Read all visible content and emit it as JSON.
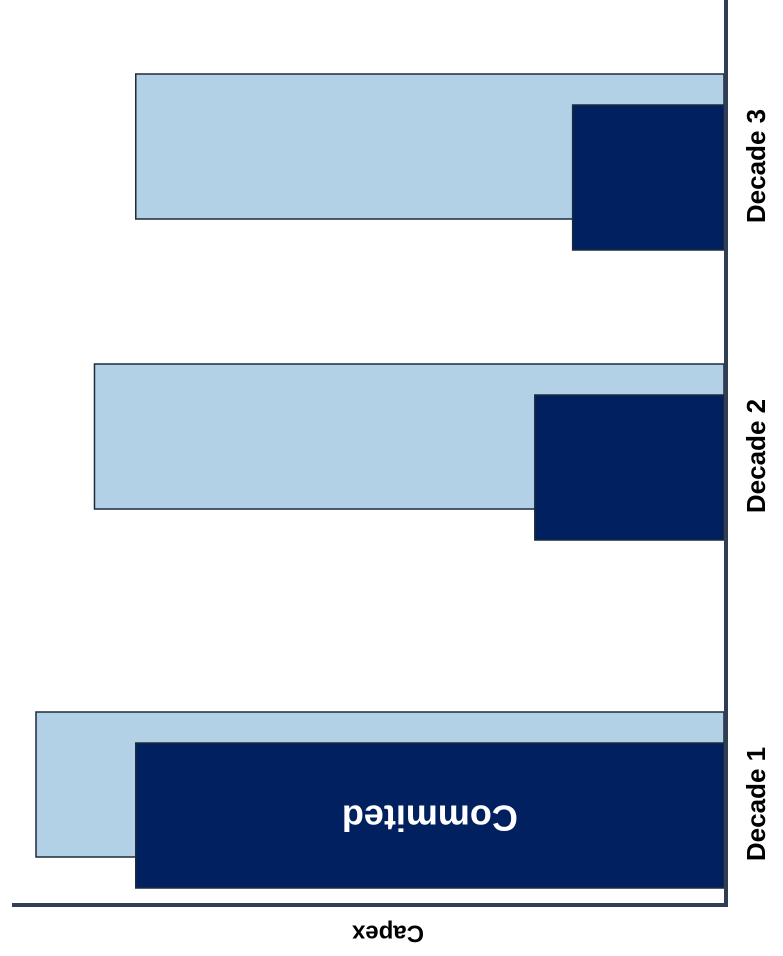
{
  "chart_data": {
    "type": "bar",
    "orientation": "horizontal",
    "categories": [
      "Decade 1",
      "Decade 2",
      "Decade 3"
    ],
    "series": [
      {
        "color": "#b3d1e6",
        "values": [
          100,
          91.5,
          85.5
        ]
      },
      {
        "name": "Commited",
        "color": "#002060",
        "values": [
          85.5,
          27.5,
          22
        ]
      }
    ],
    "xlabel": "Capex",
    "ylabel": "",
    "xlim": [
      0,
      100
    ],
    "grid": false,
    "legend": "none",
    "annotations": [
      {
        "text": "Commited",
        "category": "Decade 1",
        "series": 1
      }
    ]
  }
}
